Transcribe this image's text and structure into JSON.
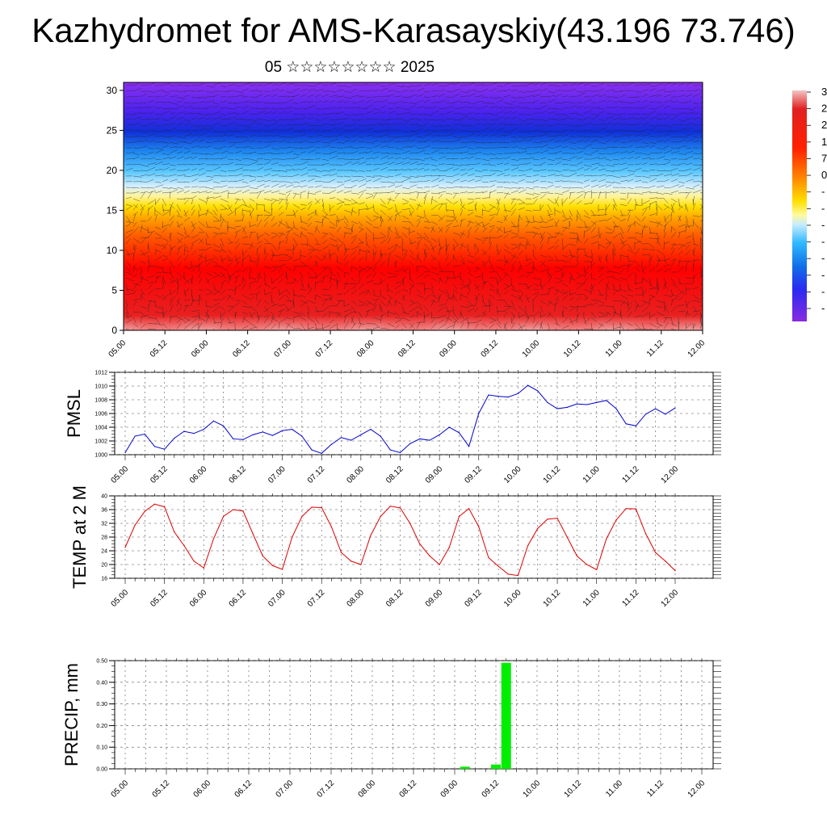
{
  "header": {
    "title": "Kazhydromet for AMS-Karasayskiy(43.196 73.746)",
    "subtitle": "05 ☆☆☆☆☆☆☆☆ 2025"
  },
  "time_labels": [
    "05.00",
    "05.12",
    "06.00",
    "06.12",
    "07.00",
    "07.12",
    "08.00",
    "08.12",
    "09.00",
    "09.12",
    "10.00",
    "10.12",
    "11.00",
    "11.12",
    "12.00"
  ],
  "colorbar": {
    "labels": [
      "3",
      "2",
      "2",
      "1",
      "7",
      "0",
      "-",
      "-",
      "-",
      "-",
      "-",
      "-",
      "-",
      "-"
    ],
    "colors": [
      "#f2b8b8",
      "#e03030",
      "#ff0000",
      "#ff5500",
      "#ffa500",
      "#ffe000",
      "#e8f4ff",
      "#44c8ff",
      "#1ea0f0",
      "#0a70e0",
      "#1040f0",
      "#4020f0",
      "#6a1cf0",
      "#8a2be2"
    ]
  },
  "chart_data": [
    {
      "type": "heatmap",
      "title": "",
      "xlabel": "",
      "ylabel": "",
      "ylim": [
        0,
        31
      ],
      "yticks": [
        0,
        5,
        10,
        15,
        20,
        25,
        30
      ],
      "x_categories": [
        "05.00",
        "05.12",
        "06.00",
        "06.12",
        "07.00",
        "07.12",
        "08.00",
        "08.12",
        "09.00",
        "09.12",
        "10.00",
        "10.12",
        "11.00",
        "11.12",
        "12.00"
      ],
      "grid": false,
      "colors": [
        "#f2b8b8",
        "#e01818",
        "#ff0000",
        "#ff4400",
        "#ff8c00",
        "#ffd700",
        "#ffff80",
        "#e6f5ff",
        "#50c8ff",
        "#1e8ff0",
        "#1050e0",
        "#2a1ee8",
        "#7a22f0"
      ]
    },
    {
      "type": "line",
      "ylabel": "PMSL",
      "ylim": [
        1000,
        1012
      ],
      "yticks": [
        1000,
        1002,
        1004,
        1006,
        1008,
        1010,
        1012
      ],
      "color": "#0000cc",
      "grid": true,
      "x": [
        0,
        3,
        6,
        9,
        12,
        15,
        18,
        21,
        24,
        27,
        30,
        33,
        36,
        39,
        42,
        45,
        48,
        51,
        54,
        57,
        60,
        63,
        66,
        69,
        72,
        75,
        78,
        81,
        84,
        87,
        90,
        93,
        96,
        99,
        102,
        105,
        108,
        111,
        114,
        117,
        120,
        123,
        126,
        129,
        132,
        135,
        138,
        141,
        144,
        147,
        150,
        153,
        156,
        159,
        162,
        165,
        168
      ],
      "values": [
        1000.3,
        1002.7,
        1003.0,
        1001.2,
        1000.8,
        1002.4,
        1003.4,
        1003.1,
        1003.7,
        1004.9,
        1004.2,
        1002.3,
        1002.2,
        1002.9,
        1003.3,
        1002.8,
        1003.5,
        1003.7,
        1002.7,
        1000.7,
        1000.2,
        1001.5,
        1002.5,
        1002.1,
        1002.9,
        1003.7,
        1002.7,
        1000.7,
        1000.3,
        1001.6,
        1002.3,
        1002.1,
        1002.9,
        1004.0,
        1003.2,
        1001.2,
        1006.0,
        1008.7,
        1008.5,
        1008.4,
        1008.9,
        1010.1,
        1009.3,
        1007.6,
        1006.7,
        1006.9,
        1007.4,
        1007.3,
        1007.6,
        1007.9,
        1006.7,
        1004.5,
        1004.2,
        1005.9,
        1006.7,
        1005.9,
        1006.8
      ],
      "x_categories": [
        "05.00",
        "05.12",
        "06.00",
        "06.12",
        "07.00",
        "07.12",
        "08.00",
        "08.12",
        "09.00",
        "09.12",
        "10.00",
        "10.12",
        "11.00",
        "11.12",
        "12.00"
      ]
    },
    {
      "type": "line",
      "ylabel": "TEMP at 2 M",
      "ylim": [
        16,
        40
      ],
      "yticks": [
        16,
        20,
        24,
        28,
        32,
        36,
        40
      ],
      "color": "#dd0000",
      "grid": true,
      "x": [
        0,
        3,
        6,
        9,
        12,
        15,
        18,
        21,
        24,
        27,
        30,
        33,
        36,
        39,
        42,
        45,
        48,
        51,
        54,
        57,
        60,
        63,
        66,
        69,
        72,
        75,
        78,
        81,
        84,
        87,
        90,
        93,
        96,
        99,
        102,
        105,
        108,
        111,
        114,
        117,
        120,
        123,
        126,
        129,
        132,
        135,
        138,
        141,
        144,
        147,
        150,
        153,
        156,
        159,
        162,
        165,
        168
      ],
      "values": [
        25.0,
        31.5,
        35.5,
        37.6,
        36.8,
        29.5,
        25.5,
        21.0,
        19.0,
        27.5,
        34.0,
        36.0,
        35.6,
        29.0,
        22.5,
        19.7,
        18.6,
        28.0,
        34.0,
        36.7,
        36.6,
        31.0,
        23.5,
        21.0,
        20.0,
        28.5,
        34.0,
        37.0,
        36.5,
        32.0,
        26.0,
        22.5,
        20.0,
        25.0,
        34.0,
        36.3,
        31.0,
        22.0,
        19.5,
        17.2,
        16.8,
        25.5,
        30.5,
        33.2,
        33.5,
        28.0,
        22.5,
        20.0,
        18.5,
        27.5,
        33.0,
        36.3,
        36.2,
        29.0,
        23.5,
        21.0,
        18.2
      ],
      "x_categories": [
        "05.00",
        "05.12",
        "06.00",
        "06.12",
        "07.00",
        "07.12",
        "08.00",
        "08.12",
        "09.00",
        "09.12",
        "10.00",
        "10.12",
        "11.00",
        "11.12",
        "12.00"
      ]
    },
    {
      "type": "bar",
      "ylabel": "PRECIP, mm",
      "ylim": [
        0,
        0.5
      ],
      "yticks": [
        "0.00",
        "0.10",
        "0.20",
        "0.30",
        "0.40",
        "0.50"
      ],
      "color": "#00ee00",
      "grid": true,
      "x": [
        99,
        108,
        111
      ],
      "values": [
        0.01,
        0.02,
        0.49
      ],
      "x_categories": [
        "05.00",
        "05.12",
        "06.00",
        "06.12",
        "07.00",
        "07.12",
        "08.00",
        "08.12",
        "09.00",
        "09.12",
        "10.00",
        "10.12",
        "11.00",
        "11.12",
        "12.00"
      ]
    }
  ]
}
